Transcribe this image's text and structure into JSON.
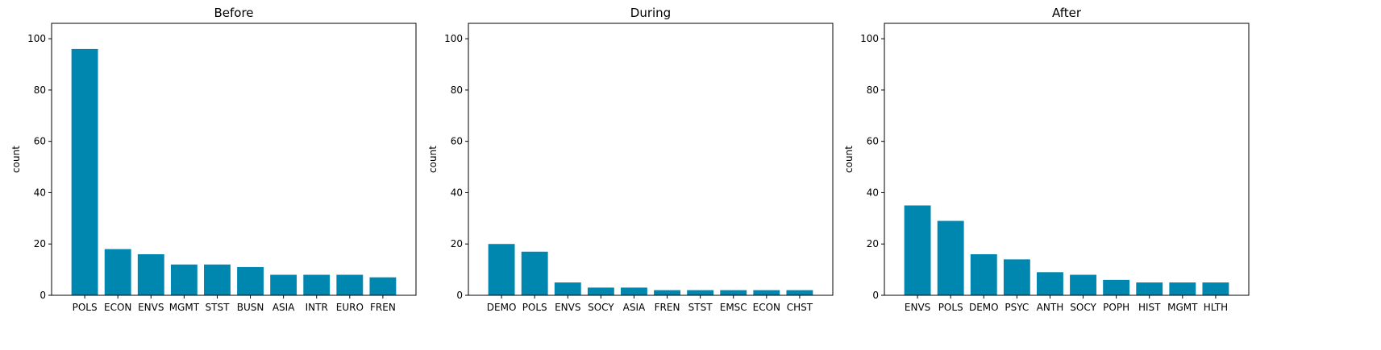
{
  "chart_data": [
    {
      "type": "bar",
      "title": "Before",
      "xlabel": "",
      "ylabel": "count",
      "ylim": [
        0,
        106
      ],
      "yticks": [
        0,
        20,
        40,
        60,
        80,
        100
      ],
      "categories": [
        "POLS",
        "ECON",
        "ENVS",
        "MGMT",
        "STST",
        "BUSN",
        "ASIA",
        "INTR",
        "EURO",
        "FREN"
      ],
      "values": [
        96,
        18,
        16,
        12,
        12,
        11,
        8,
        8,
        8,
        7
      ],
      "color": "#0087b0",
      "grid": false
    },
    {
      "type": "bar",
      "title": "During",
      "xlabel": "",
      "ylabel": "count",
      "ylim": [
        0,
        106
      ],
      "yticks": [
        0,
        20,
        40,
        60,
        80,
        100
      ],
      "categories": [
        "DEMO",
        "POLS",
        "ENVS",
        "SOCY",
        "ASIA",
        "FREN",
        "STST",
        "EMSC",
        "ECON",
        "CHST"
      ],
      "values": [
        20,
        17,
        5,
        3,
        3,
        2,
        2,
        2,
        2,
        2
      ],
      "color": "#0087b0",
      "grid": false
    },
    {
      "type": "bar",
      "title": "After",
      "xlabel": "",
      "ylabel": "count",
      "ylim": [
        0,
        106
      ],
      "yticks": [
        0,
        20,
        40,
        60,
        80,
        100
      ],
      "categories": [
        "ENVS",
        "POLS",
        "DEMO",
        "PSYC",
        "ANTH",
        "SOCY",
        "POPH",
        "HIST",
        "MGMT",
        "HLTH"
      ],
      "values": [
        35,
        29,
        16,
        14,
        9,
        8,
        6,
        5,
        5,
        5
      ],
      "color": "#0087b0",
      "grid": false
    }
  ]
}
